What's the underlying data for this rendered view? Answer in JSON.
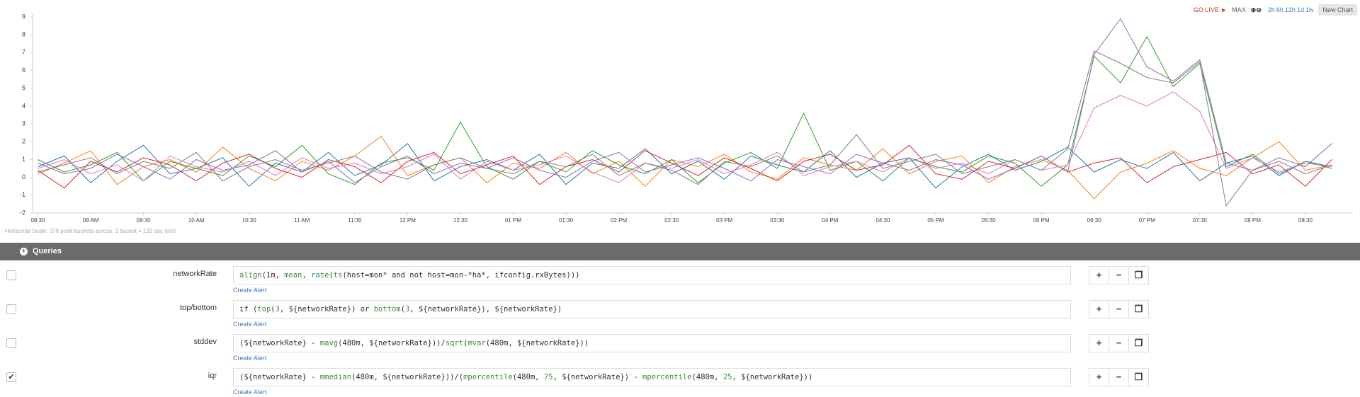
{
  "toolbar": {
    "go_live": "GO LIVE",
    "max": "MAX",
    "ranges": [
      "2h",
      "6h",
      "12h",
      "1d",
      "1w"
    ],
    "new_chart": "New Chart"
  },
  "chart_data": {
    "type": "line",
    "x": [
      8.5,
      8.75,
      9,
      9.25,
      9.5,
      9.75,
      10,
      10.25,
      10.5,
      10.75,
      11,
      11.25,
      11.5,
      11.75,
      12,
      12.25,
      12.5,
      12.75,
      13,
      13.25,
      13.5,
      13.75,
      14,
      14.25,
      14.5,
      14.75,
      15,
      15.25,
      15.5,
      15.75,
      16,
      16.25,
      16.5,
      16.75,
      17,
      17.25,
      17.5,
      17.75,
      18,
      18.25,
      18.5,
      18.75,
      19,
      19.25,
      19.5,
      19.75,
      20,
      20.25,
      20.5,
      20.75
    ],
    "series": [
      {
        "color": "#1f77b4",
        "values": [
          0.6,
          1.2,
          -0.3,
          0.9,
          1.8,
          0.2,
          0.5,
          1.1,
          -0.5,
          0.8,
          0.3,
          1.4,
          0.1,
          0.7,
          1.9,
          -0.2,
          0.6,
          1.0,
          0.4,
          1.3,
          -0.4,
          0.8,
          0.5,
          1.6,
          0.2,
          0.9,
          -0.1,
          1.2,
          0.7,
          0.3,
          1.5,
          0.0,
          0.8,
          1.1,
          -0.6,
          0.6,
          1.3,
          0.4,
          0.9,
          1.7,
          0.3,
          1.0,
          0.5,
          1.4,
          -0.2,
          0.8,
          1.2,
          0.1,
          0.9,
          0.6
        ]
      },
      {
        "color": "#ff7f0e",
        "values": [
          0.2,
          0.8,
          1.5,
          -0.4,
          0.6,
          1.0,
          0.3,
          1.7,
          0.5,
          -0.2,
          0.9,
          0.4,
          1.2,
          2.3,
          0.1,
          0.7,
          1.1,
          -0.3,
          0.8,
          0.5,
          1.4,
          0.2,
          0.9,
          -0.5,
          1.0,
          0.6,
          1.3,
          0.3,
          -0.1,
          1.1,
          0.7,
          0.4,
          1.6,
          0.2,
          0.9,
          1.2,
          -0.3,
          0.6,
          1.0,
          0.4,
          -1.2,
          0.3,
          0.8,
          1.5,
          0.5,
          0.1,
          1.1,
          2.0,
          0.4,
          0.7
        ]
      },
      {
        "color": "#2ca02c",
        "values": [
          1.0,
          0.3,
          0.7,
          1.4,
          -0.2,
          0.9,
          0.5,
          0.1,
          1.2,
          0.6,
          1.8,
          0.2,
          -0.4,
          0.8,
          1.1,
          0.4,
          3.1,
          0.6,
          -0.1,
          0.9,
          0.3,
          1.5,
          0.7,
          0.2,
          1.0,
          -0.3,
          0.8,
          1.4,
          0.5,
          3.6,
          0.4,
          0.9,
          -0.2,
          1.1,
          0.6,
          0.3,
          1.2,
          0.8,
          -0.5,
          0.7,
          6.8,
          5.3,
          7.9,
          5.1,
          6.4,
          0.6,
          1.3,
          0.2,
          0.9,
          0.5
        ]
      },
      {
        "color": "#d62728",
        "values": [
          0.4,
          -0.6,
          0.9,
          0.3,
          1.1,
          0.7,
          -0.2,
          0.8,
          1.3,
          0.5,
          0.0,
          1.0,
          0.6,
          -0.3,
          0.9,
          1.4,
          0.2,
          0.7,
          1.2,
          -0.4,
          0.6,
          1.0,
          0.3,
          1.5,
          0.8,
          0.1,
          1.1,
          0.5,
          -0.2,
          0.9,
          1.3,
          0.4,
          0.7,
          1.8,
          0.2,
          -0.1,
          0.9,
          0.5,
          1.2,
          0.3,
          0.8,
          1.1,
          -0.3,
          0.6,
          1.0,
          1.4,
          0.2,
          0.7,
          -0.5,
          1.0
        ]
      },
      {
        "color": "#9467bd",
        "values": [
          0.8,
          0.2,
          0.5,
          1.3,
          0.6,
          -0.1,
          1.0,
          0.4,
          0.7,
          1.5,
          0.3,
          0.9,
          -0.3,
          0.6,
          1.2,
          0.2,
          0.8,
          0.5,
          1.1,
          0.4,
          0.0,
          0.9,
          1.4,
          0.3,
          0.7,
          1.1,
          0.5,
          -0.2,
          1.0,
          0.6,
          0.2,
          1.3,
          0.8,
          0.4,
          1.0,
          0.7,
          -0.1,
          0.5,
          1.2,
          0.3,
          6.9,
          8.9,
          6.2,
          5.4,
          6.6,
          0.8,
          0.4,
          1.1,
          0.6,
          1.9
        ]
      },
      {
        "color": "#e377c2",
        "values": [
          0.5,
          1.0,
          0.2,
          0.7,
          -0.2,
          1.2,
          0.6,
          0.3,
          0.9,
          0.1,
          1.1,
          0.5,
          0.8,
          0.2,
          0.6,
          1.3,
          -0.1,
          0.9,
          0.4,
          0.7,
          1.2,
          0.3,
          -0.3,
          0.8,
          0.5,
          1.0,
          0.2,
          0.7,
          1.4,
          0.1,
          0.6,
          0.9,
          0.3,
          1.1,
          0.5,
          0.8,
          0.2,
          1.0,
          0.4,
          0.7,
          3.9,
          4.6,
          4.0,
          4.8,
          3.7,
          0.5,
          1.1,
          0.3,
          0.8,
          0.6
        ]
      },
      {
        "color": "#7f7f7f",
        "values": [
          0.3,
          0.7,
          1.1,
          0.2,
          0.9,
          0.5,
          1.4,
          -0.2,
          0.6,
          1.0,
          0.4,
          0.8,
          1.2,
          0.3,
          -0.1,
          0.7,
          1.1,
          0.5,
          0.2,
          0.9,
          0.6,
          1.3,
          0.1,
          0.8,
          0.4,
          -0.4,
          0.9,
          0.6,
          1.2,
          0.3,
          0.7,
          2.4,
          0.5,
          0.9,
          1.3,
          0.2,
          0.6,
          1.0,
          0.4,
          1.6,
          7.1,
          6.4,
          5.6,
          5.3,
          6.5,
          -1.6,
          0.4,
          0.9,
          0.2,
          0.7
        ]
      }
    ],
    "xlim": [
      8.45,
      20.95
    ],
    "xticks": [
      {
        "value": 8.5,
        "label": "08:30"
      },
      {
        "value": 9,
        "label": "09 AM"
      },
      {
        "value": 9.5,
        "label": "09:30"
      },
      {
        "value": 10,
        "label": "10 AM"
      },
      {
        "value": 10.5,
        "label": "10:30"
      },
      {
        "value": 11,
        "label": "11 AM"
      },
      {
        "value": 11.5,
        "label": "11:30"
      },
      {
        "value": 12,
        "label": "12 PM"
      },
      {
        "value": 12.5,
        "label": "12:30"
      },
      {
        "value": 13,
        "label": "01 PM"
      },
      {
        "value": 13.5,
        "label": "01:30"
      },
      {
        "value": 14,
        "label": "02 PM"
      },
      {
        "value": 14.5,
        "label": "02:30"
      },
      {
        "value": 15,
        "label": "03 PM"
      },
      {
        "value": 15.5,
        "label": "03:30"
      },
      {
        "value": 16,
        "label": "04 PM"
      },
      {
        "value": 16.5,
        "label": "04:30"
      },
      {
        "value": 17,
        "label": "05 PM"
      },
      {
        "value": 17.5,
        "label": "05:30"
      },
      {
        "value": 18,
        "label": "06 PM"
      },
      {
        "value": 18.5,
        "label": "06:30"
      },
      {
        "value": 19,
        "label": "07 PM"
      },
      {
        "value": 19.5,
        "label": "07:30"
      },
      {
        "value": 20,
        "label": "08 PM"
      },
      {
        "value": 20.5,
        "label": "08:30"
      }
    ],
    "ylim": [
      -2,
      9
    ],
    "yticks": [
      -2,
      -1,
      0,
      1,
      2,
      3,
      4,
      5,
      6,
      7,
      8,
      9
    ],
    "grid": false
  },
  "footnote": "Horizontal Scale: 378 point buckets across, 1 bucket = 120 sec (est)",
  "queries": {
    "title": "Queries",
    "rows": [
      {
        "name": "networkRate",
        "checked": false,
        "query": "align(1m, mean, rate(ts(host=mon* and not host=mon-*ha*, ifconfig.rxBytes)))",
        "create_alert": "Create Alert"
      },
      {
        "name": "top/bottom",
        "checked": false,
        "query": "if (top(3, ${networkRate}) or bottom(3, ${networkRate}), ${networkRate})",
        "create_alert": "Create Alert"
      },
      {
        "name": "stddev",
        "checked": false,
        "query": "(${networkRate} - mavg(480m, ${networkRate}))/sqrt(mvar(480m, ${networkRate}))",
        "create_alert": "Create Alert"
      },
      {
        "name": "iqr",
        "checked": true,
        "query": "(${networkRate} - mmedian(480m, ${networkRate}))/(mpercentile(480m, 75, ${networkRate}) - mpercentile(480m, 25, ${networkRate}))",
        "create_alert": "Create Alert"
      }
    ]
  }
}
